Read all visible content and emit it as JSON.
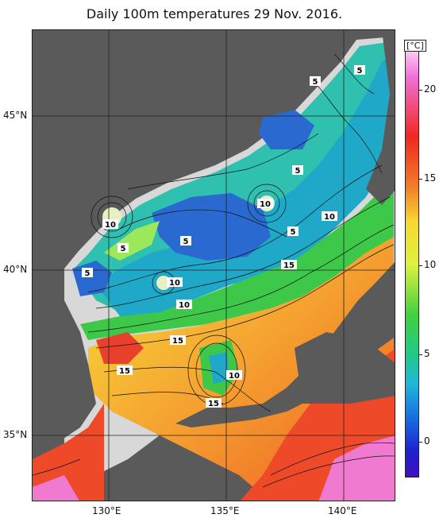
{
  "title": "Daily 100m temperatures 29 Nov. 2016.",
  "axes": {
    "lat_labels": [
      "45°N",
      "40°N",
      "35°N"
    ],
    "lon_labels": [
      "130°E",
      "135°E",
      "140°E"
    ]
  },
  "colorbar": {
    "unit": "[°C]",
    "ticks": [
      "20",
      "15",
      "10",
      "5",
      "0"
    ],
    "range": [
      -2,
      22
    ]
  },
  "contour_labels": [
    "5",
    "5",
    "5",
    "5",
    "5",
    "5",
    "5",
    "10",
    "10",
    "10",
    "10",
    "10",
    "10",
    "15",
    "15",
    "15",
    "15"
  ],
  "colors": {
    "land": "#5a5a5a",
    "no_data": "#d8d8d8",
    "grid": "#222222"
  }
}
